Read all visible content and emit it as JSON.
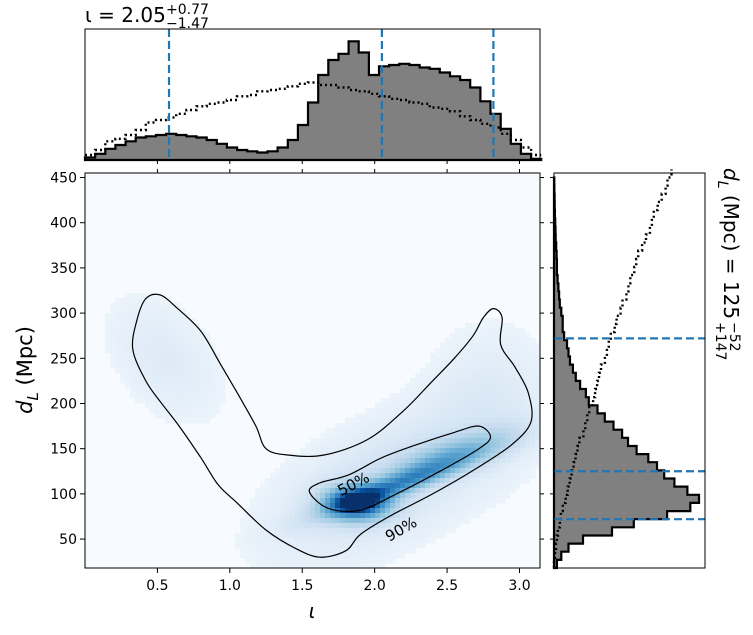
{
  "chart_data": [
    {
      "type": "area",
      "panel": "top-marginal",
      "title_parts": {
        "symbol": "ι",
        "value": "2.05",
        "plus": "+0.77",
        "minus": "−1.47"
      },
      "x_range": [
        0,
        3.1416
      ],
      "x_ticks": [
        0.5,
        1.0,
        1.5,
        2.0,
        2.5,
        3.0
      ],
      "quantile_lines": [
        0.58,
        2.05,
        2.82
      ],
      "posterior_step": {
        "x": [
          0.0,
          0.07,
          0.14,
          0.21,
          0.28,
          0.35,
          0.42,
          0.49,
          0.56,
          0.63,
          0.7,
          0.77,
          0.84,
          0.91,
          0.98,
          1.05,
          1.12,
          1.19,
          1.26,
          1.33,
          1.4,
          1.47,
          1.54,
          1.61,
          1.68,
          1.75,
          1.82,
          1.89,
          1.96,
          2.03,
          2.1,
          2.17,
          2.24,
          2.31,
          2.38,
          2.45,
          2.52,
          2.59,
          2.66,
          2.73,
          2.8,
          2.87,
          2.94,
          3.01,
          3.08
        ],
        "density": [
          0.02,
          0.05,
          0.09,
          0.12,
          0.15,
          0.18,
          0.19,
          0.2,
          0.21,
          0.2,
          0.19,
          0.18,
          0.16,
          0.13,
          0.1,
          0.08,
          0.07,
          0.06,
          0.07,
          0.1,
          0.16,
          0.28,
          0.46,
          0.68,
          0.8,
          0.85,
          0.95,
          0.86,
          0.68,
          0.75,
          0.76,
          0.77,
          0.76,
          0.74,
          0.73,
          0.7,
          0.67,
          0.64,
          0.58,
          0.47,
          0.37,
          0.25,
          0.13,
          0.05,
          0.01
        ]
      },
      "prior_dotted": {
        "x": [
          0.0,
          0.07,
          0.14,
          0.21,
          0.28,
          0.35,
          0.42,
          0.49,
          0.56,
          0.63,
          0.7,
          0.77,
          0.84,
          0.91,
          0.98,
          1.05,
          1.12,
          1.19,
          1.26,
          1.33,
          1.4,
          1.47,
          1.54,
          1.61,
          1.68,
          1.75,
          1.82,
          1.89,
          1.96,
          2.03,
          2.1,
          2.17,
          2.24,
          2.31,
          2.38,
          2.45,
          2.52,
          2.59,
          2.66,
          2.73,
          2.8,
          2.87,
          2.94,
          3.01,
          3.08
        ],
        "density": [
          0.04,
          0.08,
          0.15,
          0.17,
          0.2,
          0.24,
          0.3,
          0.32,
          0.34,
          0.37,
          0.4,
          0.43,
          0.45,
          0.46,
          0.48,
          0.51,
          0.52,
          0.55,
          0.56,
          0.57,
          0.59,
          0.61,
          0.62,
          0.6,
          0.6,
          0.58,
          0.56,
          0.55,
          0.53,
          0.51,
          0.49,
          0.48,
          0.46,
          0.45,
          0.42,
          0.41,
          0.39,
          0.35,
          0.32,
          0.29,
          0.26,
          0.21,
          0.16,
          0.1,
          0.04
        ]
      }
    },
    {
      "type": "heatmap",
      "panel": "joint",
      "xlabel": "ι",
      "ylabel": "d_L (Mpc)",
      "ylabel_parts": {
        "base": "d",
        "sub": "L",
        "rest": " (Mpc)"
      },
      "xlim": [
        0,
        3.1416
      ],
      "ylim": [
        18,
        455
      ],
      "x_ticks": [
        0.5,
        1.0,
        1.5,
        2.0,
        2.5,
        3.0
      ],
      "x_tick_labels": [
        "0.5",
        "1.0",
        "1.5",
        "2.0",
        "2.5",
        "3.0"
      ],
      "y_ticks": [
        50,
        100,
        150,
        200,
        250,
        300,
        350,
        400,
        450
      ],
      "y_tick_labels": [
        "50",
        "100",
        "150",
        "200",
        "250",
        "300",
        "350",
        "400",
        "450"
      ],
      "colormap": "Blues",
      "contour_labels": [
        "50%",
        "90%"
      ],
      "contour_50": [
        [
          1.55,
          102
        ],
        [
          1.68,
          84
        ],
        [
          1.9,
          82
        ],
        [
          2.15,
          100
        ],
        [
          2.45,
          125
        ],
        [
          2.72,
          150
        ],
        [
          2.8,
          163
        ],
        [
          2.72,
          175
        ],
        [
          2.55,
          168
        ],
        [
          2.3,
          155
        ],
        [
          2.05,
          140
        ],
        [
          1.82,
          121
        ],
        [
          1.62,
          112
        ]
      ],
      "contour_90": [
        [
          0.33,
          260
        ],
        [
          0.36,
          293
        ],
        [
          0.42,
          316
        ],
        [
          0.52,
          320
        ],
        [
          0.64,
          305
        ],
        [
          0.8,
          280
        ],
        [
          0.93,
          245
        ],
        [
          1.05,
          212
        ],
        [
          1.18,
          175
        ],
        [
          1.25,
          150
        ],
        [
          1.4,
          143
        ],
        [
          1.65,
          143
        ],
        [
          1.95,
          160
        ],
        [
          2.2,
          192
        ],
        [
          2.4,
          225
        ],
        [
          2.55,
          250
        ],
        [
          2.68,
          275
        ],
        [
          2.75,
          295
        ],
        [
          2.82,
          305
        ],
        [
          2.88,
          295
        ],
        [
          2.87,
          265
        ],
        [
          2.97,
          240
        ],
        [
          3.06,
          212
        ],
        [
          3.08,
          180
        ],
        [
          2.95,
          155
        ],
        [
          2.7,
          128
        ],
        [
          2.4,
          100
        ],
        [
          2.1,
          75
        ],
        [
          1.9,
          55
        ],
        [
          1.8,
          37
        ],
        [
          1.62,
          30
        ],
        [
          1.45,
          40
        ],
        [
          1.25,
          60
        ],
        [
          1.05,
          90
        ],
        [
          0.92,
          110
        ],
        [
          0.8,
          140
        ],
        [
          0.65,
          175
        ],
        [
          0.52,
          202
        ],
        [
          0.42,
          225
        ]
      ],
      "density_blobs": [
        {
          "x": 1.88,
          "y": 90,
          "sx": 0.14,
          "sy": 12,
          "w": 1.0
        },
        {
          "x": 2.18,
          "y": 112,
          "sx": 0.32,
          "sy": 21,
          "rho": 0.9,
          "w": 0.55
        },
        {
          "x": 2.55,
          "y": 145,
          "sx": 0.28,
          "sy": 18,
          "rho": 0.7,
          "w": 0.28
        },
        {
          "x": 2.05,
          "y": 110,
          "sx": 0.55,
          "sy": 60,
          "rho": 0.55,
          "w": 0.1
        },
        {
          "x": 0.55,
          "y": 250,
          "sx": 0.28,
          "sy": 50,
          "rho": -0.4,
          "w": 0.06
        },
        {
          "x": 2.8,
          "y": 210,
          "sx": 0.3,
          "sy": 60,
          "w": 0.05
        }
      ]
    },
    {
      "type": "area",
      "panel": "right-marginal",
      "title_parts": {
        "base": "d",
        "sub": "L",
        "rest": " (Mpc) = 125",
        "plus": "+147",
        "minus": "−52"
      },
      "y_range": [
        18,
        455
      ],
      "quantile_lines": [
        72,
        125,
        272
      ],
      "posterior_step": {
        "y": [
          18,
          27,
          36,
          45,
          54,
          63,
          72,
          81,
          90,
          99,
          108,
          117,
          126,
          135,
          144,
          153,
          162,
          171,
          180,
          189,
          198,
          207,
          216,
          225,
          234,
          243,
          252,
          261,
          270,
          279,
          288,
          297,
          306,
          315,
          324,
          333,
          342,
          351,
          360,
          369,
          378,
          387,
          396,
          405,
          414,
          423,
          432,
          441
        ],
        "density": [
          0.02,
          0.05,
          0.1,
          0.2,
          0.4,
          0.55,
          0.78,
          0.94,
          1.0,
          0.92,
          0.83,
          0.76,
          0.71,
          0.65,
          0.57,
          0.51,
          0.47,
          0.41,
          0.35,
          0.3,
          0.24,
          0.22,
          0.18,
          0.15,
          0.13,
          0.11,
          0.1,
          0.09,
          0.07,
          0.06,
          0.06,
          0.05,
          0.04,
          0.035,
          0.03,
          0.025,
          0.02,
          0.02,
          0.018,
          0.015,
          0.012,
          0.01,
          0.008,
          0.006,
          0.005,
          0.004,
          0.003,
          0.002
        ]
      },
      "prior_dotted": {
        "y": [
          18,
          27,
          36,
          45,
          54,
          63,
          72,
          81,
          90,
          99,
          108,
          117,
          126,
          135,
          144,
          153,
          162,
          171,
          180,
          189,
          198,
          207,
          216,
          225,
          234,
          243,
          252,
          261,
          270,
          279,
          288,
          297,
          306,
          315,
          324,
          333,
          342,
          351,
          360,
          369,
          378,
          387,
          396,
          405,
          414,
          423,
          432,
          441,
          450
        ],
        "density": [
          0.0,
          0.005,
          0.01,
          0.015,
          0.02,
          0.03,
          0.035,
          0.045,
          0.06,
          0.07,
          0.08,
          0.09,
          0.1,
          0.11,
          0.12,
          0.13,
          0.15,
          0.16,
          0.17,
          0.18,
          0.2,
          0.21,
          0.22,
          0.23,
          0.24,
          0.26,
          0.27,
          0.28,
          0.29,
          0.31,
          0.32,
          0.34,
          0.35,
          0.37,
          0.38,
          0.39,
          0.41,
          0.42,
          0.43,
          0.45,
          0.47,
          0.49,
          0.5,
          0.51,
          0.53,
          0.55,
          0.57,
          0.58,
          0.6
        ]
      }
    }
  ],
  "colors": {
    "fill": "#808080",
    "outline": "#000000",
    "quantile_line": "#1f77b4",
    "cmap_low": "#f7fbff",
    "cmap_high": "#08306b"
  }
}
